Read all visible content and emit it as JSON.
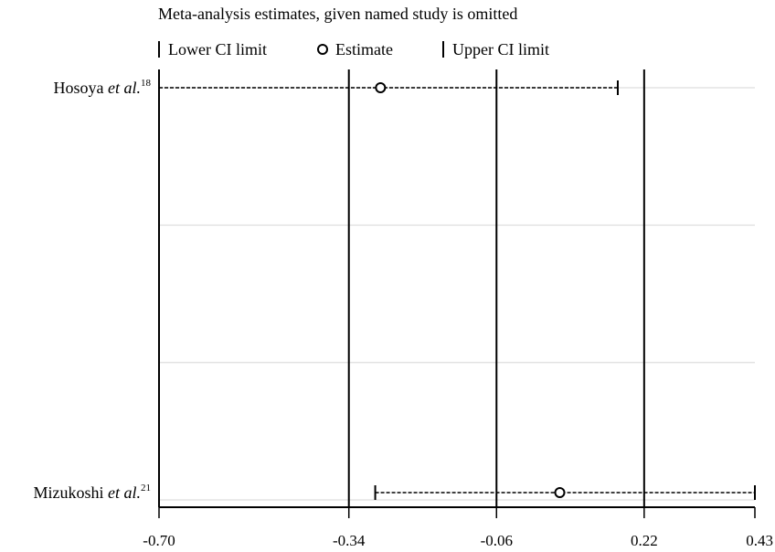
{
  "chart_data": {
    "type": "forest",
    "title": "Meta-analysis estimates, given named study is omitted",
    "legend": {
      "placement": "top",
      "items": [
        {
          "symbol": "bar",
          "label": "Lower CI limit"
        },
        {
          "symbol": "circle",
          "label": "Estimate"
        },
        {
          "symbol": "bar",
          "label": "Upper CI limit"
        }
      ]
    },
    "xlim": [
      -0.7,
      0.43
    ],
    "x_ticks": [
      {
        "value": -0.7,
        "label": "-0.70"
      },
      {
        "value": -0.34,
        "label": "-0.34"
      },
      {
        "value": -0.06,
        "label": "-0.06"
      },
      {
        "value": 0.22,
        "label": "0.22"
      },
      {
        "value": 0.43,
        "label": "0.43"
      }
    ],
    "reference_lines": [
      -0.7,
      -0.34,
      -0.06,
      0.22
    ],
    "grid": {
      "horizontal": true,
      "rows": 4
    },
    "studies": [
      {
        "name": "Hosoya",
        "etal": "et al.",
        "ref": "18",
        "lower": -0.7,
        "estimate": -0.28,
        "upper": 0.17
      },
      {
        "name": "Mizukoshi",
        "etal": "et al.",
        "ref": "21",
        "lower": -0.29,
        "estimate": 0.06,
        "upper": 0.43
      }
    ]
  }
}
